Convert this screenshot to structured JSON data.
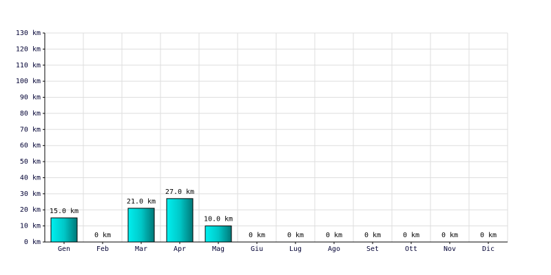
{
  "chart_data": {
    "type": "bar",
    "categories": [
      "Gen",
      "Feb",
      "Mar",
      "Apr",
      "Mag",
      "Giu",
      "Lug",
      "Ago",
      "Set",
      "Ott",
      "Nov",
      "Dic"
    ],
    "values": [
      15,
      0,
      21,
      27,
      10,
      0,
      0,
      0,
      0,
      0,
      0,
      0
    ],
    "value_labels": [
      "15.0 km",
      "0 km",
      "21.0 km",
      "27.0 km",
      "10.0 km",
      "0 km",
      "0 km",
      "0 km",
      "0 km",
      "0 km",
      "0 km",
      "0 km"
    ],
    "color": "#00c8c8",
    "ylim": [
      0,
      130
    ],
    "yticks": [
      {
        "value": 0,
        "label": "0 km"
      },
      {
        "value": 10,
        "label": "10 km"
      },
      {
        "value": 20,
        "label": "20 km"
      },
      {
        "value": 30,
        "label": "30 km"
      },
      {
        "value": 40,
        "label": "40 km"
      },
      {
        "value": 50,
        "label": "50 km"
      },
      {
        "value": 60,
        "label": "60 km"
      },
      {
        "value": 70,
        "label": "70 km"
      },
      {
        "value": 80,
        "label": "80 km"
      },
      {
        "value": 90,
        "label": "90 km"
      },
      {
        "value": 100,
        "label": "100 km"
      },
      {
        "value": 110,
        "label": "110 km"
      },
      {
        "value": 120,
        "label": "120 km"
      },
      {
        "value": 130,
        "label": "130 km"
      }
    ],
    "grid": true
  }
}
